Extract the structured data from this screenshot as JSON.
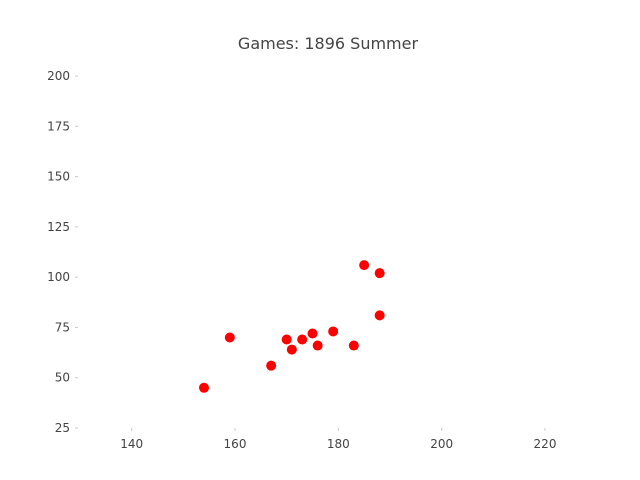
{
  "chart_data": {
    "type": "scatter",
    "title": "Games:  1896 Summer",
    "xlabel": "",
    "ylabel": "",
    "xlim": [
      130,
      226
    ],
    "ylim": [
      25,
      207
    ],
    "x_ticks": [
      140,
      160,
      180,
      200,
      220
    ],
    "y_ticks": [
      25,
      50,
      75,
      100,
      125,
      150,
      175,
      200
    ],
    "grid": false,
    "series": [
      {
        "color": "#ff0000",
        "points": [
          {
            "x": 154,
            "y": 45
          },
          {
            "x": 159,
            "y": 70
          },
          {
            "x": 167,
            "y": 56
          },
          {
            "x": 170,
            "y": 69
          },
          {
            "x": 171,
            "y": 64
          },
          {
            "x": 173,
            "y": 69
          },
          {
            "x": 175,
            "y": 72
          },
          {
            "x": 176,
            "y": 66
          },
          {
            "x": 179,
            "y": 73
          },
          {
            "x": 183,
            "y": 66
          },
          {
            "x": 185,
            "y": 106
          },
          {
            "x": 188,
            "y": 102
          },
          {
            "x": 188,
            "y": 81
          }
        ]
      }
    ]
  }
}
